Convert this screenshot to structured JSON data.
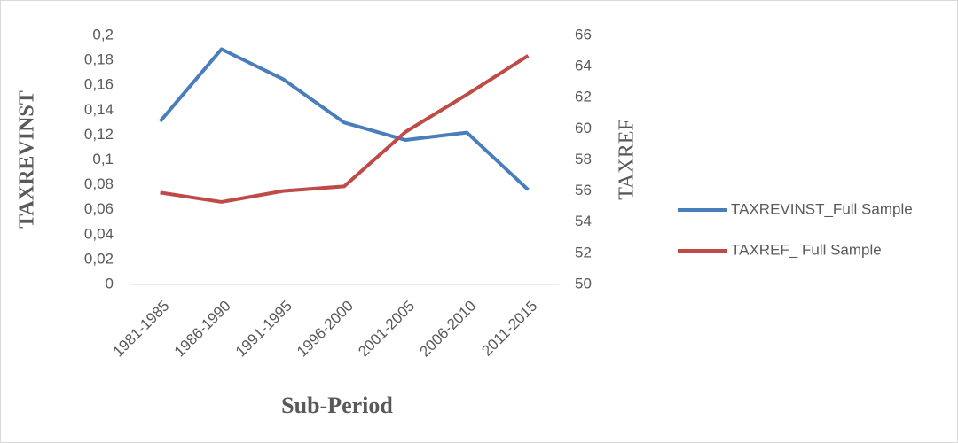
{
  "chart_data": {
    "type": "line",
    "categories": [
      "1981-1985",
      "1986-1990",
      "1991-1995",
      "1996-2000",
      "2001-2005",
      "2006-2010",
      "2011-2015"
    ],
    "x_label": "Sub-Period",
    "y_label": "TAXREVINST",
    "y2_label": "TAXREF",
    "series": [
      {
        "name": "TAXREVINST_Full Sample",
        "color": "#4a7ebb",
        "values": [
          0.131,
          0.189,
          0.165,
          0.13,
          0.116,
          0.122,
          0.076
        ]
      },
      {
        "name": "TAXREF_ Full Sample",
        "color": "#be4b48",
        "axis": "y2",
        "values": [
          55.9,
          55.3,
          56.0,
          56.3,
          59.8,
          62.2,
          64.7
        ]
      }
    ],
    "ylim": [
      0,
      0.2
    ],
    "yticks": [
      0,
      {
        "value": 0.02,
        "label": "0,02"
      },
      {
        "value": 0.04,
        "label": "0,04"
      },
      {
        "value": 0.06,
        "label": "0,06"
      },
      {
        "value": 0.08,
        "label": "0,08"
      },
      {
        "value": 0.1,
        "label": "0,1"
      },
      {
        "value": 0.12,
        "label": "0,12"
      },
      {
        "value": 0.14,
        "label": "0,14"
      },
      {
        "value": 0.16,
        "label": "0,16"
      },
      {
        "value": 0.18,
        "label": "0,18"
      },
      {
        "value": 0.2,
        "label": "0,2"
      }
    ],
    "y2lim": [
      50,
      66
    ],
    "y2ticks": [
      50,
      52,
      54,
      56,
      58,
      60,
      62,
      64,
      66
    ],
    "legend": "right"
  }
}
